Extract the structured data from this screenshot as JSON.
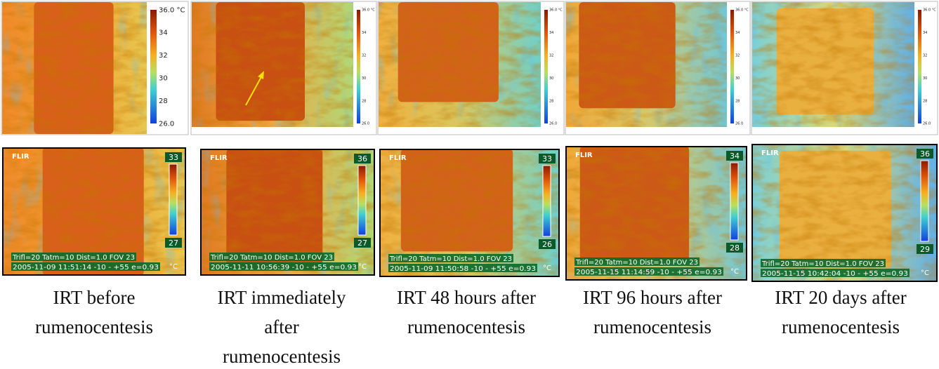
{
  "top_row": [
    {
      "scale": [
        "36.0 °C",
        "34",
        "32",
        "30",
        "28",
        "26.0"
      ]
    },
    {
      "scale": [
        "36.0 °C",
        "34",
        "32",
        "30",
        "28",
        "26.0"
      ]
    },
    {
      "scale": [
        "36.0 °C",
        "34",
        "32",
        "30",
        "28",
        "26.0"
      ]
    },
    {
      "scale": [
        "36.0 °C",
        "34",
        "32",
        "30",
        "28",
        "26.0"
      ]
    },
    {
      "scale": [
        "36.0 °C",
        "34",
        "32",
        "30",
        "28",
        "26.0"
      ]
    }
  ],
  "bottom_row": [
    {
      "logo": "FLIR",
      "max": "33",
      "min": "27",
      "params": "Trifl=20 Tatm=10 Dist=1.0 FOV 23",
      "timestamp": "2005-11-09 11:51:14  -10 -  +55  e=0.93",
      "unit": "°C"
    },
    {
      "logo": "FLIR",
      "max": "36",
      "min": "27",
      "params": "Trifl=20 Tatm=10 Dist=1.0 FOV 23",
      "timestamp": "2005-11-11 10:56:39  -10 -  +55  e=0.93",
      "unit": "°C"
    },
    {
      "logo": "FLIR",
      "max": "33",
      "min": "26",
      "params": "Trifl=20 Tatm=10 Dist=1.0 FOV 23",
      "timestamp": "2005-11-09 11:50:58  -10 -  +55  e=0.93",
      "unit": "°C"
    },
    {
      "logo": "FLIR",
      "max": "34",
      "min": "28",
      "params": "Trifl=20 Tatm=10 Dist=1.0 FOV 23",
      "timestamp": "2005-11-15 11:14:59  -10 -  +55  e=0.93",
      "unit": "°C"
    },
    {
      "logo": "FLIR",
      "max": "36",
      "min": "29",
      "params": "Trifl=20 Tatm=10 Dist=1.0 FOV 23",
      "timestamp": "2005-11-15 10:42:04  -10 -  +55  e=0.93",
      "unit": "°C"
    }
  ],
  "captions": [
    [
      "IRT before",
      "rumenocentesis"
    ],
    [
      "IRT immediately",
      "after",
      "rumenocentesis"
    ],
    [
      "IRT 48 hours after",
      "rumenocentesis"
    ],
    [
      "IRT 96 hours after",
      "rumenocentesis"
    ],
    [
      "IRT 20 days after",
      "rumenocentesis"
    ]
  ]
}
